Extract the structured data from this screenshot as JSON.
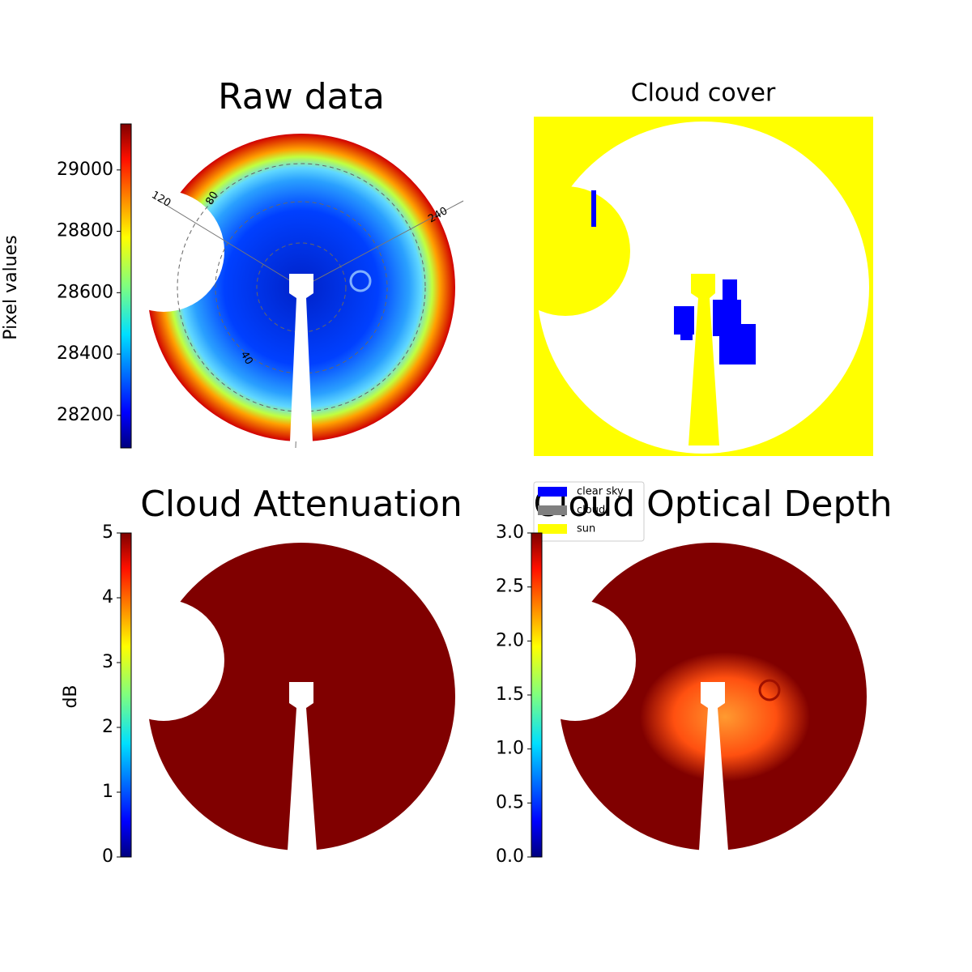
{
  "chart_data": [
    {
      "type": "image",
      "title": "Raw data",
      "ylabel": "Pixel values",
      "colormap": "jet",
      "ylim": [
        28094,
        29150
      ],
      "yticks": [
        28200,
        28400,
        28600,
        28800,
        29000
      ],
      "annotations": [
        "120",
        "80",
        "240",
        "40"
      ]
    },
    {
      "type": "image",
      "title": "Cloud cover",
      "legend": [
        {
          "label": "clear sky",
          "color": "#0000ff"
        },
        {
          "label": "cloud",
          "color": "#808080"
        },
        {
          "label": "sun",
          "color": "#ffff00"
        }
      ]
    },
    {
      "type": "image",
      "title": "Cloud Attenuation",
      "ylabel": "dB",
      "colormap": "jet",
      "ylim": [
        0,
        5
      ],
      "yticks": [
        0,
        1,
        2,
        3,
        4,
        5
      ]
    },
    {
      "type": "image",
      "title": "Cloud Optical Depth",
      "colormap": "jet",
      "ylim": [
        0,
        3
      ],
      "yticks": [
        {
          "value": 0,
          "label": "0.0"
        },
        {
          "value": 0.5,
          "label": "0.5"
        },
        {
          "value": 1,
          "label": "1.0"
        },
        {
          "value": 1.5,
          "label": "1.5"
        },
        {
          "value": 2,
          "label": "2.0"
        },
        {
          "value": 2.5,
          "label": "2.5"
        },
        {
          "value": 3,
          "label": "3.0"
        }
      ]
    }
  ]
}
